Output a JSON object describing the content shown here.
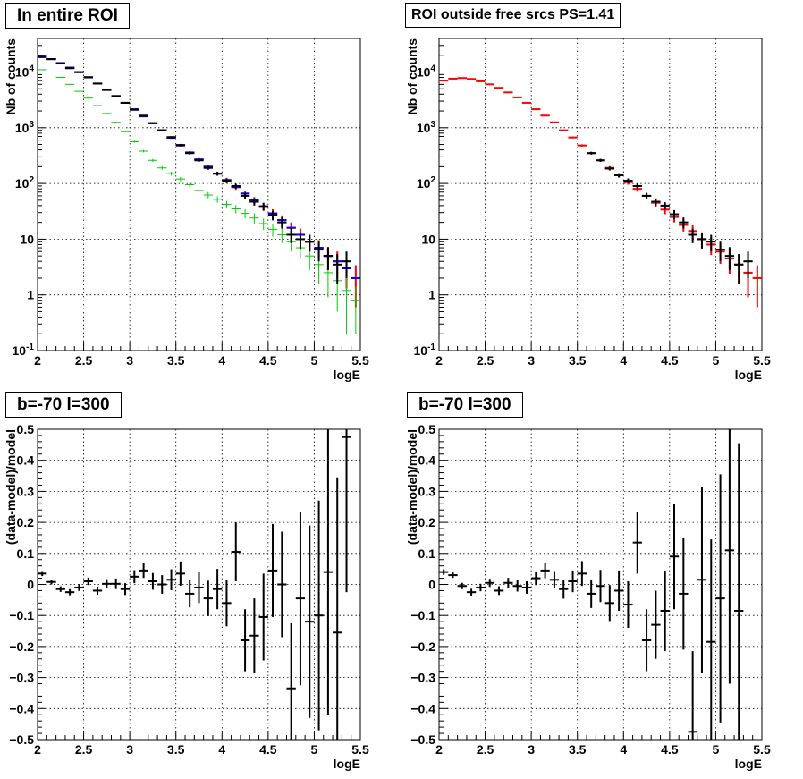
{
  "chart_data": [
    {
      "type": "scatter",
      "title": "In entire ROI",
      "xlabel": "logE",
      "ylabel": "Nb of counts",
      "xlim": [
        2,
        5.5
      ],
      "ylim": [
        0.1,
        40000
      ],
      "yscale": "log",
      "xticks": [
        "2",
        "2.5",
        "3",
        "3.5",
        "4",
        "4.5",
        "5",
        "5.5"
      ],
      "yticks": [
        "10^-1",
        "1",
        "10",
        "10^2",
        "10^3",
        "10^4"
      ],
      "grid": true,
      "series": [
        {
          "color": "#ff0000",
          "x": [
            2.05,
            2.15,
            2.25,
            2.35,
            2.45,
            2.55,
            2.65,
            2.75,
            2.85,
            2.95,
            3.05,
            3.15,
            3.25,
            3.35,
            3.45,
            3.55,
            3.65,
            3.75,
            3.85,
            3.95,
            4.05,
            4.15,
            4.25,
            4.35,
            4.45,
            4.55,
            4.65,
            4.75,
            4.85,
            4.95,
            5.05,
            5.15,
            5.25,
            5.35,
            5.45
          ],
          "y": [
            18500,
            17000,
            14500,
            12000,
            10000,
            8000,
            6200,
            4800,
            3700,
            2800,
            2100,
            1600,
            1200,
            900,
            660,
            480,
            360,
            270,
            200,
            150,
            115,
            86,
            66,
            50,
            38,
            29,
            22,
            16,
            12,
            9,
            7,
            5,
            4,
            3,
            2
          ],
          "err": [
            140,
            130,
            120,
            110,
            100,
            90,
            80,
            70,
            60,
            53,
            46,
            40,
            35,
            30,
            26,
            22,
            19,
            16,
            14,
            12,
            11,
            9,
            8,
            7,
            6,
            5.4,
            4.7,
            4,
            3.5,
            3,
            2.6,
            2.2,
            2,
            1.7,
            1.4
          ]
        },
        {
          "color": "#0000ff",
          "x": [
            2.05,
            2.15,
            2.25,
            2.35,
            2.45,
            2.55,
            2.65,
            2.75,
            2.85,
            2.95,
            3.05,
            3.15,
            3.25,
            3.35,
            3.45,
            3.55,
            3.65,
            3.75,
            3.85,
            3.95,
            4.05,
            4.15,
            4.25,
            4.35,
            4.45,
            4.55,
            4.65,
            4.75,
            4.85,
            4.95,
            5.05,
            5.15,
            5.25,
            5.35,
            5.45
          ],
          "y": [
            18500,
            17000,
            14500,
            12000,
            10000,
            8000,
            6200,
            4800,
            3700,
            2800,
            2100,
            1600,
            1200,
            900,
            660,
            480,
            360,
            270,
            200,
            150,
            115,
            86,
            66,
            50,
            38,
            29,
            22,
            16,
            12,
            9,
            7,
            5,
            4,
            3,
            2
          ]
        },
        {
          "color": "#00cc00",
          "x": [
            2.05,
            2.15,
            2.25,
            2.35,
            2.45,
            2.55,
            2.65,
            2.75,
            2.85,
            2.95,
            3.05,
            3.15,
            3.25,
            3.35,
            3.45,
            3.55,
            3.65,
            3.75,
            3.85,
            3.95,
            4.05,
            4.15,
            4.25,
            4.35,
            4.45,
            4.55,
            4.65,
            4.75,
            4.85,
            4.95,
            5.05,
            5.15,
            5.25,
            5.35,
            5.45
          ],
          "y": [
            11000,
            10000,
            8000,
            6000,
            4500,
            3400,
            2500,
            1800,
            1250,
            850,
            560,
            380,
            260,
            190,
            150,
            120,
            95,
            75,
            62,
            52,
            42,
            35,
            29,
            24,
            19,
            15,
            12,
            9,
            7,
            5,
            3.5,
            2.5,
            1.8,
            1.2,
            0.8
          ],
          "err": [
            110,
            100,
            90,
            80,
            70,
            60,
            50,
            42,
            35,
            29,
            24,
            20,
            16,
            14,
            12,
            11,
            10,
            9,
            8,
            7,
            6.5,
            6,
            5.4,
            4.9,
            4.4,
            3.9,
            3.5,
            3,
            2.6,
            2.2,
            1.9,
            1.6,
            1.3,
            1,
            0.6
          ]
        },
        {
          "color": "#000000",
          "x": [
            2.05,
            2.15,
            2.25,
            2.35,
            2.45,
            2.55,
            2.65,
            2.75,
            2.85,
            2.95,
            3.05,
            3.15,
            3.25,
            3.35,
            3.45,
            3.55,
            3.65,
            3.75,
            3.85,
            3.95,
            4.05,
            4.15,
            4.25,
            4.35,
            4.45,
            4.55,
            4.65,
            4.75,
            4.85,
            4.95,
            5.05,
            5.15,
            5.25,
            5.35
          ],
          "y": [
            19000,
            17100,
            14200,
            11700,
            9900,
            8100,
            6200,
            4750,
            3700,
            2800,
            2150,
            1650,
            1210,
            900,
            680,
            490,
            350,
            260,
            190,
            150,
            112,
            90,
            60,
            47,
            39,
            27,
            20,
            12,
            10,
            9,
            6.5,
            5,
            3.5,
            4
          ],
          "err": [
            140,
            130,
            120,
            110,
            100,
            90,
            80,
            70,
            60,
            53,
            46,
            40,
            35,
            30,
            26,
            22,
            19,
            16,
            14,
            12,
            11,
            9,
            8,
            7,
            6,
            5.2,
            4.5,
            3.5,
            3.2,
            3,
            2.5,
            2.2,
            1.9,
            2
          ]
        }
      ]
    },
    {
      "type": "scatter",
      "title": "ROI outside free srcs PS=1.41",
      "xlabel": "logE",
      "ylabel": "Nb of counts",
      "xlim": [
        2,
        5.5
      ],
      "ylim": [
        0.1,
        40000
      ],
      "yscale": "log",
      "xticks": [
        "2",
        "2.5",
        "3",
        "3.5",
        "4",
        "4.5",
        "5",
        "5.5"
      ],
      "yticks": [
        "10^-1",
        "1",
        "10",
        "10^2",
        "10^3",
        "10^4"
      ],
      "grid": true,
      "series": [
        {
          "color": "#ff0000",
          "x": [
            2.05,
            2.15,
            2.25,
            2.35,
            2.45,
            2.55,
            2.65,
            2.75,
            2.85,
            2.95,
            3.05,
            3.15,
            3.25,
            3.35,
            3.45,
            3.55,
            3.65,
            3.75,
            3.85,
            3.95,
            4.05,
            4.15,
            4.25,
            4.35,
            4.45,
            4.55,
            4.65,
            4.75,
            4.85,
            4.95,
            5.05,
            5.15,
            5.25,
            5.35,
            5.45
          ],
          "y": [
            7000,
            7600,
            7800,
            7500,
            6800,
            6000,
            5200,
            4300,
            3500,
            2800,
            2150,
            1650,
            1250,
            900,
            670,
            480,
            350,
            260,
            190,
            140,
            105,
            80,
            60,
            45,
            34,
            25,
            18,
            14,
            10,
            8,
            6,
            4.5,
            3.5,
            2.5,
            2
          ],
          "err": [
            85,
            87,
            88,
            86,
            82,
            77,
            72,
            66,
            59,
            53,
            46,
            40,
            35,
            30,
            26,
            22,
            19,
            16,
            14,
            12,
            10,
            9,
            8,
            7,
            6,
            5,
            4.3,
            3.7,
            3.2,
            2.8,
            2.4,
            2.1,
            1.9,
            1.6,
            1.4
          ]
        },
        {
          "color": "#000000",
          "x": [
            3.65,
            3.75,
            3.85,
            3.95,
            4.05,
            4.15,
            4.25,
            4.35,
            4.45,
            4.55,
            4.65,
            4.75,
            4.85,
            4.95,
            5.05,
            5.15,
            5.25,
            5.35
          ],
          "y": [
            350,
            260,
            185,
            140,
            112,
            90,
            60,
            47,
            40,
            28,
            20,
            12,
            10,
            9,
            6.5,
            5,
            3.5,
            4
          ],
          "err": [
            19,
            16,
            14,
            12,
            11,
            9,
            8,
            7,
            6,
            5.2,
            4.5,
            3.5,
            3.2,
            3,
            2.5,
            2.2,
            1.9,
            2
          ]
        }
      ]
    },
    {
      "type": "scatter",
      "title": "b=-70 l=300",
      "xlabel": "logE",
      "ylabel": "(data-model)/model",
      "xlim": [
        2,
        5.5
      ],
      "ylim": [
        -0.5,
        0.5
      ],
      "xticks": [
        "2",
        "2.5",
        "3",
        "3.5",
        "4",
        "4.5",
        "5",
        "5.5"
      ],
      "yticks": [
        "−0.5",
        "−0.4",
        "−0.3",
        "−0.2",
        "−0.1",
        "0",
        "0.1",
        "0.2",
        "0.3",
        "0.4",
        "0.5"
      ],
      "grid": true,
      "series": [
        {
          "color": "#000000",
          "x": [
            2.05,
            2.15,
            2.25,
            2.35,
            2.45,
            2.55,
            2.65,
            2.75,
            2.85,
            2.95,
            3.05,
            3.15,
            3.25,
            3.35,
            3.45,
            3.55,
            3.65,
            3.75,
            3.85,
            3.95,
            4.05,
            4.15,
            4.25,
            4.35,
            4.45,
            4.55,
            4.65,
            4.75,
            4.85,
            4.95,
            5.05,
            5.15,
            5.25,
            5.35
          ],
          "y": [
            0.035,
            0.008,
            -0.015,
            -0.025,
            -0.01,
            0.01,
            -0.02,
            0.002,
            0.002,
            -0.015,
            0.025,
            0.045,
            0.01,
            0.0,
            0.015,
            0.035,
            -0.03,
            -0.01,
            -0.045,
            -0.015,
            -0.06,
            0.105,
            -0.18,
            -0.165,
            -0.105,
            0.045,
            0.0,
            -0.335,
            -0.045,
            -0.12,
            -0.1,
            0.04,
            -0.155,
            0.475
          ],
          "err": [
            0.008,
            0.008,
            0.009,
            0.01,
            0.011,
            0.012,
            0.013,
            0.015,
            0.017,
            0.019,
            0.021,
            0.024,
            0.027,
            0.03,
            0.034,
            0.039,
            0.044,
            0.05,
            0.057,
            0.065,
            0.075,
            0.095,
            0.1,
            0.12,
            0.14,
            0.15,
            0.17,
            0.21,
            0.28,
            0.31,
            0.37,
            0.46,
            0.5,
            0.5
          ]
        }
      ]
    },
    {
      "type": "scatter",
      "title": "b=-70 l=300",
      "xlabel": "logE",
      "ylabel": "(data-model)/model",
      "xlim": [
        2,
        5.5
      ],
      "ylim": [
        -0.5,
        0.5
      ],
      "xticks": [
        "2",
        "2.5",
        "3",
        "3.5",
        "4",
        "4.5",
        "5",
        "5.5"
      ],
      "yticks": [
        "−0.5",
        "−0.4",
        "−0.3",
        "−0.2",
        "−0.1",
        "0",
        "0.1",
        "0.2",
        "0.3",
        "0.4",
        "0.5"
      ],
      "grid": true,
      "series": [
        {
          "color": "#000000",
          "x": [
            2.05,
            2.15,
            2.25,
            2.35,
            2.45,
            2.55,
            2.65,
            2.75,
            2.85,
            2.95,
            3.05,
            3.15,
            3.25,
            3.35,
            3.45,
            3.55,
            3.65,
            3.75,
            3.85,
            3.95,
            4.05,
            4.15,
            4.25,
            4.35,
            4.45,
            4.55,
            4.65,
            4.75,
            4.85,
            4.95,
            5.05,
            5.15,
            5.25
          ],
          "y": [
            0.04,
            0.03,
            -0.005,
            -0.025,
            -0.01,
            0.005,
            -0.02,
            0.005,
            -0.005,
            -0.01,
            0.02,
            0.045,
            0.015,
            -0.015,
            0.01,
            0.035,
            -0.03,
            -0.005,
            -0.06,
            -0.02,
            -0.065,
            0.135,
            -0.18,
            -0.13,
            -0.085,
            0.09,
            -0.03,
            -0.475,
            0.015,
            -0.185,
            -0.045,
            0.11,
            -0.085
          ],
          "err": [
            0.009,
            0.009,
            0.01,
            0.011,
            0.012,
            0.013,
            0.014,
            0.016,
            0.018,
            0.02,
            0.022,
            0.025,
            0.028,
            0.031,
            0.035,
            0.04,
            0.046,
            0.052,
            0.058,
            0.065,
            0.075,
            0.1,
            0.1,
            0.11,
            0.13,
            0.17,
            0.18,
            0.26,
            0.3,
            0.33,
            0.4,
            0.43,
            0.54
          ]
        }
      ]
    }
  ]
}
